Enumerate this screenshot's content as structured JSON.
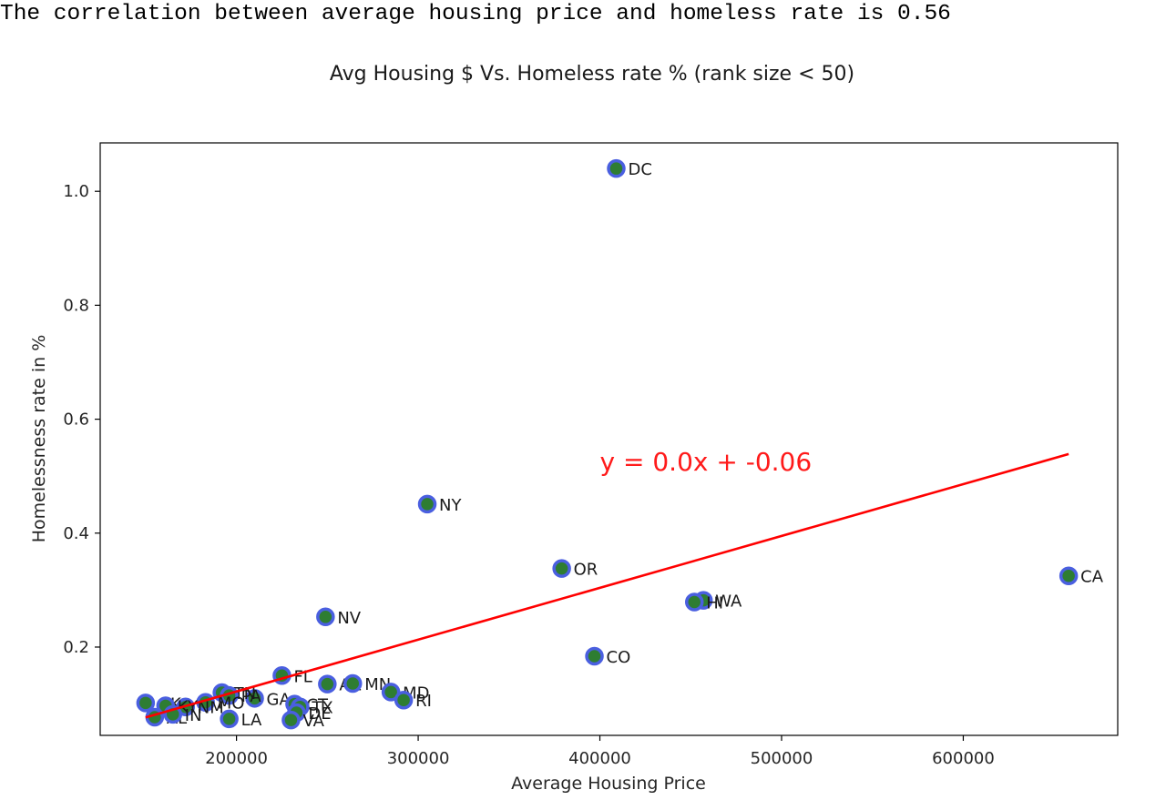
{
  "output": {
    "correlation_text": "The correlation between average housing price and homeless rate is 0.56"
  },
  "chart_data": {
    "type": "scatter",
    "title": "Avg Housing $ Vs. Homeless rate % (rank size < 50)",
    "xlabel": "Average Housing Price",
    "ylabel": "Homelessness rate in %",
    "xlim": [
      125000,
      685000
    ],
    "ylim": [
      0.045,
      1.085
    ],
    "xticks": [
      200000,
      300000,
      400000,
      500000,
      600000
    ],
    "yticks": [
      0.2,
      0.4,
      0.6,
      0.8,
      1.0
    ],
    "xtick_labels": [
      "200000",
      "300000",
      "400000",
      "500000",
      "600000"
    ],
    "ytick_labels": [
      "0.2",
      "0.4",
      "0.6",
      "0.8",
      "1.0"
    ],
    "marker_fill": "#2e7d32",
    "marker_edge": "#4a5fe0",
    "line_color": "#ff0000",
    "points": [
      {
        "label": "DC",
        "x": 409000,
        "y": 1.04
      },
      {
        "label": "NY",
        "x": 305000,
        "y": 0.451
      },
      {
        "label": "OR",
        "x": 379000,
        "y": 0.338
      },
      {
        "label": "CA",
        "x": 658000,
        "y": 0.325
      },
      {
        "label": "WA",
        "x": 457000,
        "y": 0.282
      },
      {
        "label": "HI",
        "x": 452000,
        "y": 0.279
      },
      {
        "label": "NV",
        "x": 249000,
        "y": 0.253
      },
      {
        "label": "CO",
        "x": 397000,
        "y": 0.184
      },
      {
        "label": "FL",
        "x": 225000,
        "y": 0.15
      },
      {
        "label": "AZ",
        "x": 250000,
        "y": 0.135
      },
      {
        "label": "MN",
        "x": 264000,
        "y": 0.136
      },
      {
        "label": "MD",
        "x": 285000,
        "y": 0.121
      },
      {
        "label": "RI",
        "x": 292000,
        "y": 0.107
      },
      {
        "label": "GA",
        "x": 210000,
        "y": 0.11
      },
      {
        "label": "TN",
        "x": 192000,
        "y": 0.12
      },
      {
        "label": "PA",
        "x": 196000,
        "y": 0.115
      },
      {
        "label": "MO",
        "x": 183000,
        "y": 0.103
      },
      {
        "label": "OK",
        "x": 150000,
        "y": 0.102
      },
      {
        "label": "NM",
        "x": 172000,
        "y": 0.095
      },
      {
        "label": "KY",
        "x": 161000,
        "y": 0.097
      },
      {
        "label": "AL",
        "x": 155000,
        "y": 0.077
      },
      {
        "label": "IN",
        "x": 165000,
        "y": 0.082
      },
      {
        "label": "LA",
        "x": 196000,
        "y": 0.074
      },
      {
        "label": "CT",
        "x": 232000,
        "y": 0.1
      },
      {
        "label": "TX",
        "x": 235000,
        "y": 0.095
      },
      {
        "label": "DE",
        "x": 233000,
        "y": 0.085
      },
      {
        "label": "VA",
        "x": 230000,
        "y": 0.072
      }
    ],
    "regression": {
      "equation": "y = 0.0x + -0.06",
      "slope": 9.1e-07,
      "intercept": -0.06,
      "x_range": [
        150000,
        658000
      ]
    }
  }
}
